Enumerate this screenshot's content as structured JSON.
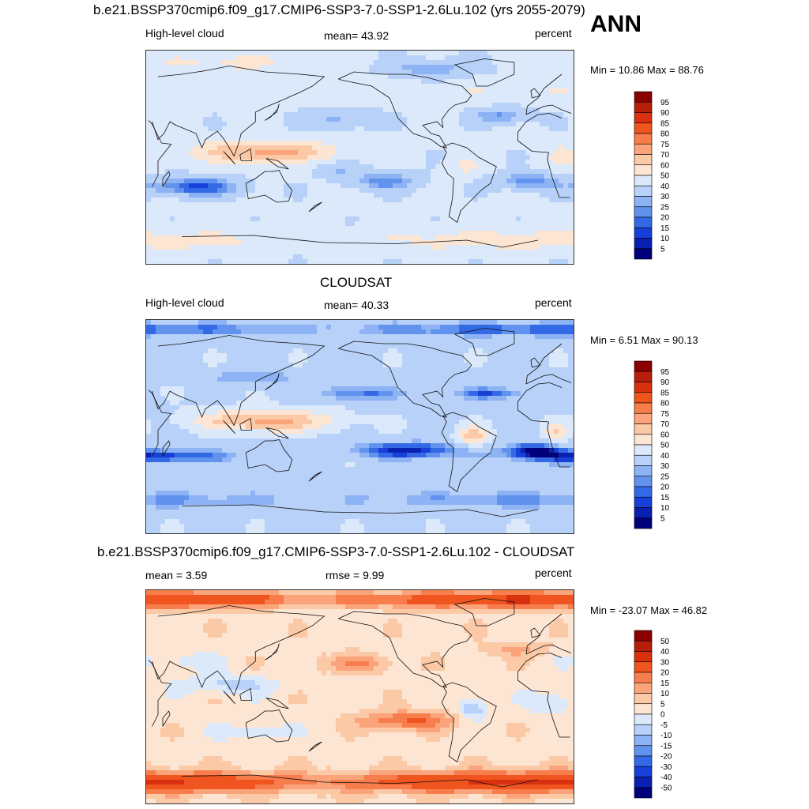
{
  "season_label": "ANN",
  "chart_data": [
    {
      "type": "heatmap",
      "title": "b.e21.BSSP370cmip6.f09_g17.CMIP6-SSP3-7.0-SSP1-2.6Lu.102 (yrs 2055-2079)",
      "left_label": "High-level cloud",
      "center_label": "mean=  43.92",
      "right_label": "percent",
      "minmax_label": "Min =  10.86 Max =  88.76",
      "stats": {
        "mean": 43.92,
        "min": 10.86,
        "max": 88.76
      },
      "units": "percent",
      "levels": [
        "95",
        "90",
        "85",
        "80",
        "75",
        "70",
        "60",
        "50",
        "40",
        "30",
        "25",
        "20",
        "15",
        "10",
        "5"
      ],
      "colors": [
        "#8b0000",
        "#b81f0b",
        "#d9310f",
        "#f0541f",
        "#f77e4c",
        "#fba47b",
        "#fcc9a7",
        "#fde5d3",
        "#dbe9fb",
        "#b7d1f8",
        "#8db3f4",
        "#6092ee",
        "#3469e6",
        "#1740d8",
        "#0a20b0",
        "#00007a"
      ],
      "features": [
        {
          "lon": 130,
          "lat": 5,
          "rx": 55,
          "ry": 9,
          "amp": 32
        },
        {
          "lon": -60,
          "lat": -8,
          "rx": 12,
          "ry": 8,
          "amp": 10
        },
        {
          "lon": 20,
          "lat": 0,
          "rx": 10,
          "ry": 10,
          "amp": 12
        },
        {
          "lon": 70,
          "lat": -25,
          "rx": 40,
          "ry": 8,
          "amp": -28
        },
        {
          "lon": -130,
          "lat": -20,
          "rx": 30,
          "ry": 8,
          "amp": -20
        },
        {
          "lon": -10,
          "lat": -20,
          "rx": 25,
          "ry": 7,
          "amp": -22
        },
        {
          "lon": -165,
          "lat": 32,
          "rx": 30,
          "ry": 8,
          "amp": -14
        },
        {
          "lon": -30,
          "lat": 35,
          "rx": 25,
          "ry": 7,
          "amp": -18
        },
        {
          "lon": -170,
          "lat": -10,
          "rx": 18,
          "ry": 6,
          "amp": -12
        },
        {
          "lon": -90,
          "lat": 75,
          "rx": 40,
          "ry": 8,
          "amp": -16
        },
        {
          "lon": 0,
          "lat": -70,
          "rx": 180,
          "ry": 10,
          "amp": 12
        },
        {
          "lon": 100,
          "lat": 80,
          "rx": 70,
          "ry": 8,
          "amp": 10
        },
        {
          "lon": 0,
          "lat": 55,
          "rx": 180,
          "ry": 8,
          "amp": 6
        }
      ],
      "base": 42
    },
    {
      "type": "heatmap",
      "title": "CLOUDSAT",
      "left_label": "High-level cloud",
      "center_label": "mean=  40.33",
      "right_label": "percent",
      "minmax_label": "Min =   6.51 Max =  90.13",
      "stats": {
        "mean": 40.33,
        "min": 6.51,
        "max": 90.13
      },
      "units": "percent",
      "levels": [
        "95",
        "90",
        "85",
        "80",
        "75",
        "70",
        "60",
        "50",
        "40",
        "30",
        "25",
        "20",
        "15",
        "10",
        "5"
      ],
      "colors": [
        "#8b0000",
        "#b81f0b",
        "#d9310f",
        "#f0541f",
        "#f77e4c",
        "#fba47b",
        "#fcc9a7",
        "#fde5d3",
        "#dbe9fb",
        "#b7d1f8",
        "#8db3f4",
        "#6092ee",
        "#3469e6",
        "#1740d8",
        "#0a20b0",
        "#00007a"
      ],
      "features": [
        {
          "lon": 130,
          "lat": 5,
          "rx": 55,
          "ry": 9,
          "amp": 36
        },
        {
          "lon": -55,
          "lat": -8,
          "rx": 12,
          "ry": 8,
          "amp": 28
        },
        {
          "lon": 15,
          "lat": -5,
          "rx": 10,
          "ry": 8,
          "amp": 20
        },
        {
          "lon": -110,
          "lat": -20,
          "rx": 45,
          "ry": 7,
          "amp": -30
        },
        {
          "lon": 40,
          "lat": -25,
          "rx": 60,
          "ry": 6,
          "amp": -28
        },
        {
          "lon": -5,
          "lat": -20,
          "rx": 22,
          "ry": 6,
          "amp": -30
        },
        {
          "lon": -150,
          "lat": 28,
          "rx": 35,
          "ry": 6,
          "amp": -20
        },
        {
          "lon": -40,
          "lat": 28,
          "rx": 30,
          "ry": 5,
          "amp": -22
        },
        {
          "lon": 0,
          "lat": -62,
          "rx": 180,
          "ry": 8,
          "amp": -14
        },
        {
          "lon": 0,
          "lat": 82,
          "rx": 180,
          "ry": 6,
          "amp": -22
        },
        {
          "lon": 120,
          "lat": 42,
          "rx": 40,
          "ry": 6,
          "amp": -14
        }
      ],
      "base": 38
    },
    {
      "type": "heatmap",
      "title": "b.e21.BSSP370cmip6.f09_g17.CMIP6-SSP3-7.0-SSP1-2.6Lu.102 - CLOUDSAT",
      "left_label": "mean =   3.59",
      "center_label": "rmse =   9.99",
      "right_label": "percent",
      "minmax_label": "Min = -23.07 Max =  46.82",
      "stats": {
        "mean": 3.59,
        "rmse": 9.99,
        "min": -23.07,
        "max": 46.82
      },
      "units": "percent",
      "levels": [
        "50",
        "40",
        "30",
        "20",
        "15",
        "10",
        "5",
        "0",
        "-5",
        "-10",
        "-15",
        "-20",
        "-30",
        "-40",
        "-50"
      ],
      "colors": [
        "#8b0000",
        "#b81f0b",
        "#d9310f",
        "#f0541f",
        "#f77e4c",
        "#fba47b",
        "#fcc9a7",
        "#fde5d3",
        "#dbe9fb",
        "#b7d1f8",
        "#8db3f4",
        "#6092ee",
        "#3469e6",
        "#1740d8",
        "#0a20b0",
        "#00007a"
      ],
      "features": [
        {
          "lon": 0,
          "lat": 82,
          "rx": 180,
          "ry": 7,
          "amp": 28
        },
        {
          "lon": 0,
          "lat": -72,
          "rx": 180,
          "ry": 9,
          "amp": 30
        },
        {
          "lon": -110,
          "lat": -20,
          "rx": 40,
          "ry": 8,
          "amp": 18
        },
        {
          "lon": -150,
          "lat": 28,
          "rx": 30,
          "ry": 8,
          "amp": 12
        },
        {
          "lon": -55,
          "lat": -10,
          "rx": 12,
          "ry": 9,
          "amp": -14
        },
        {
          "lon": 10,
          "lat": -5,
          "rx": 18,
          "ry": 9,
          "amp": -10
        },
        {
          "lon": 100,
          "lat": 10,
          "rx": 40,
          "ry": 8,
          "amp": -10
        },
        {
          "lon": 120,
          "lat": -30,
          "rx": 30,
          "ry": 6,
          "amp": -9
        },
        {
          "lon": -20,
          "lat": 40,
          "rx": 30,
          "ry": 6,
          "amp": 8
        },
        {
          "lon": 60,
          "lat": 30,
          "rx": 30,
          "ry": 8,
          "amp": -6
        }
      ],
      "base": 3
    }
  ],
  "palette_thresholds_note": ""
}
